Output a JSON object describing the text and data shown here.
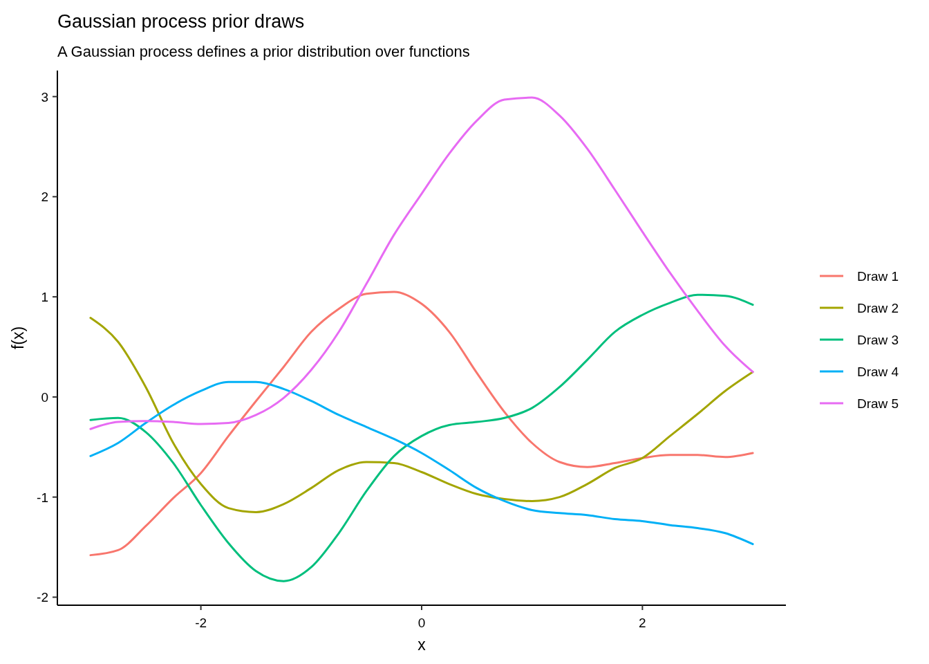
{
  "chart_data": {
    "type": "line",
    "title": "Gaussian process prior draws",
    "subtitle": "A Gaussian process defines a prior distribution over functions",
    "xlabel": "x",
    "ylabel": "f(x)",
    "x": [
      -3,
      -2.75,
      -2.5,
      -2.25,
      -2,
      -1.75,
      -1.5,
      -1.25,
      -1,
      -0.75,
      -0.5,
      -0.25,
      0,
      0.25,
      0.5,
      0.75,
      1,
      1.25,
      1.5,
      1.75,
      2,
      2.25,
      2.5,
      2.75,
      3
    ],
    "series": [
      {
        "name": "Draw 1",
        "color": "#f8766d",
        "values": [
          -1.58,
          -1.53,
          -1.29,
          -1.01,
          -0.76,
          -0.39,
          -0.04,
          0.3,
          0.65,
          0.88,
          1.03,
          1.05,
          0.93,
          0.65,
          0.24,
          -0.15,
          -0.46,
          -0.65,
          -0.7,
          -0.66,
          -0.61,
          -0.58,
          -0.58,
          -0.6,
          -0.56
        ]
      },
      {
        "name": "Draw 2",
        "color": "#a3a500",
        "values": [
          0.79,
          0.55,
          0.1,
          -0.46,
          -0.87,
          -1.11,
          -1.15,
          -1.07,
          -0.91,
          -0.73,
          -0.65,
          -0.66,
          -0.75,
          -0.87,
          -0.97,
          -1.02,
          -1.04,
          -1.0,
          -0.87,
          -0.71,
          -0.61,
          -0.39,
          -0.17,
          0.06,
          0.25
        ]
      },
      {
        "name": "Draw 3",
        "color": "#00bf7d",
        "values": [
          -0.23,
          -0.21,
          -0.35,
          -0.66,
          -1.08,
          -1.46,
          -1.74,
          -1.84,
          -1.7,
          -1.36,
          -0.94,
          -0.59,
          -0.39,
          -0.28,
          -0.25,
          -0.21,
          -0.11,
          0.1,
          0.37,
          0.65,
          0.82,
          0.94,
          1.02,
          1.01,
          0.92
        ]
      },
      {
        "name": "Draw 4",
        "color": "#00b0f6",
        "values": [
          -0.59,
          -0.46,
          -0.26,
          -0.08,
          0.06,
          0.15,
          0.15,
          0.08,
          -0.04,
          -0.18,
          -0.3,
          -0.42,
          -0.56,
          -0.73,
          -0.91,
          -1.04,
          -1.13,
          -1.16,
          -1.18,
          -1.22,
          -1.24,
          -1.28,
          -1.31,
          -1.36,
          -1.47
        ]
      },
      {
        "name": "Draw 5",
        "color": "#e76bf3",
        "values": [
          -0.32,
          -0.25,
          -0.24,
          -0.25,
          -0.27,
          -0.26,
          -0.18,
          -0.01,
          0.27,
          0.65,
          1.13,
          1.62,
          2.03,
          2.43,
          2.76,
          2.97,
          2.99,
          2.81,
          2.48,
          2.07,
          1.65,
          1.24,
          0.86,
          0.51,
          0.25
        ]
      }
    ],
    "xlim": [
      -3.3,
      3.3
    ],
    "ylim": [
      -2.08,
      3.26
    ],
    "xticks": [
      -2,
      0,
      2
    ],
    "yticks": [
      -2,
      -1,
      0,
      1,
      2,
      3
    ],
    "legend": "right",
    "grid": false
  }
}
